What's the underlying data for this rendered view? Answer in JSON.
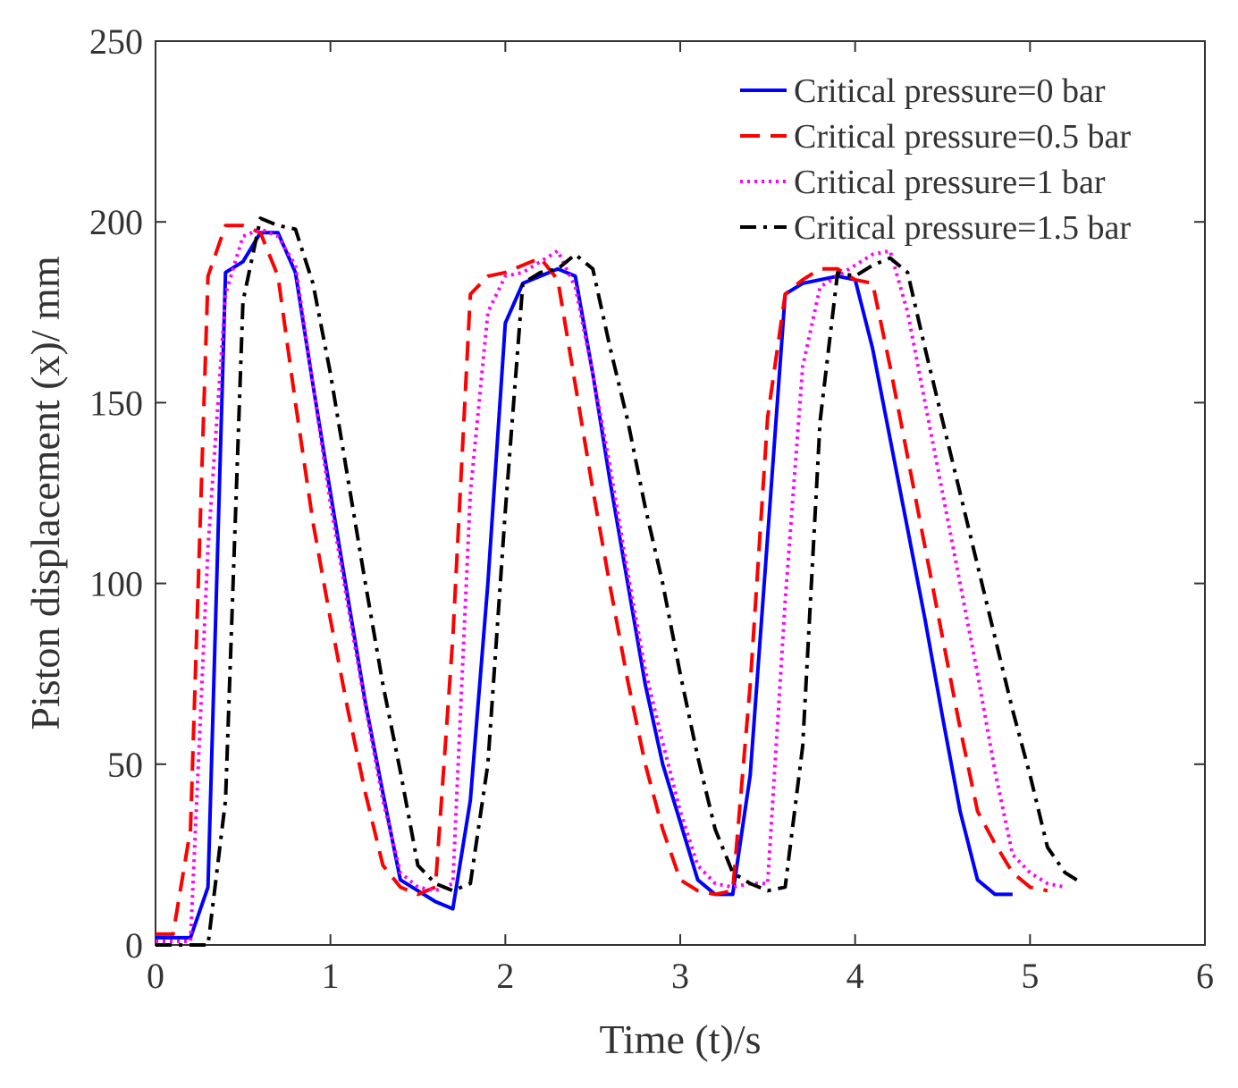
{
  "chart_data": {
    "type": "line",
    "title": "",
    "xlabel": "Time (t)/s",
    "ylabel": "Piston displacement (x)/ mm",
    "xlim": [
      0,
      6
    ],
    "ylim": [
      0,
      250
    ],
    "xticks": [
      0,
      1,
      2,
      3,
      4,
      5,
      6
    ],
    "yticks": [
      0,
      50,
      100,
      150,
      200,
      250
    ],
    "grid": false,
    "legend_position": "top-right",
    "series": [
      {
        "name": "Critical pressure=0 bar",
        "color": "#0000ff",
        "style": "solid",
        "x": [
          0,
          0.2,
          0.3,
          0.4,
          0.5,
          0.6,
          0.7,
          0.8,
          0.9,
          1.0,
          1.1,
          1.2,
          1.3,
          1.4,
          1.5,
          1.6,
          1.7,
          1.8,
          1.9,
          2.0,
          2.1,
          2.2,
          2.3,
          2.4,
          2.5,
          2.6,
          2.7,
          2.8,
          2.9,
          3.0,
          3.1,
          3.2,
          3.3,
          3.4,
          3.5,
          3.6,
          3.7,
          3.8,
          3.9,
          4.0,
          4.1,
          4.2,
          4.3,
          4.4,
          4.5,
          4.6,
          4.7,
          4.8,
          4.9
        ],
        "y": [
          2,
          2,
          16,
          186,
          189,
          197,
          197,
          186,
          155,
          125,
          96,
          67,
          42,
          18,
          15,
          12,
          10,
          40,
          100,
          172,
          183,
          185,
          187,
          185,
          158,
          128,
          100,
          72,
          50,
          34,
          18,
          14,
          14,
          47,
          113,
          180,
          183,
          184,
          185,
          184,
          165,
          140,
          115,
          90,
          63,
          37,
          18,
          14,
          14
        ]
      },
      {
        "name": "Critical pressure=0.5 bar",
        "color": "#ff0000",
        "style": "dashed",
        "x": [
          0,
          0.1,
          0.2,
          0.3,
          0.4,
          0.5,
          0.6,
          0.7,
          0.8,
          0.9,
          1.0,
          1.1,
          1.2,
          1.3,
          1.4,
          1.5,
          1.6,
          1.7,
          1.8,
          1.9,
          2.0,
          2.1,
          2.2,
          2.3,
          2.4,
          2.5,
          2.6,
          2.7,
          2.8,
          2.9,
          3.0,
          3.1,
          3.2,
          3.3,
          3.4,
          3.5,
          3.6,
          3.7,
          3.8,
          3.9,
          4.0,
          4.1,
          4.2,
          4.3,
          4.4,
          4.5,
          4.6,
          4.7,
          4.8,
          4.9,
          5.0,
          5.1
        ],
        "y": [
          3,
          3,
          32,
          185,
          199,
          199,
          197,
          185,
          150,
          117,
          90,
          65,
          42,
          22,
          16,
          14,
          16,
          85,
          180,
          185,
          186,
          188,
          190,
          184,
          155,
          126,
          99,
          73,
          50,
          32,
          18,
          15,
          14,
          15,
          72,
          146,
          180,
          184,
          187,
          187,
          184,
          183,
          160,
          135,
          110,
          85,
          60,
          37,
          28,
          20,
          16,
          15
        ]
      },
      {
        "name": "Critical pressure=1  bar",
        "color": "#ff00ff",
        "style": "dotted",
        "x": [
          0,
          0.1,
          0.2,
          0.3,
          0.4,
          0.5,
          0.6,
          0.7,
          0.8,
          0.9,
          1.0,
          1.1,
          1.2,
          1.3,
          1.4,
          1.5,
          1.6,
          1.7,
          1.8,
          1.9,
          2.0,
          2.1,
          2.2,
          2.3,
          2.4,
          2.5,
          2.6,
          2.7,
          2.8,
          2.9,
          3.0,
          3.1,
          3.2,
          3.3,
          3.4,
          3.5,
          3.6,
          3.7,
          3.8,
          3.9,
          4.0,
          4.1,
          4.2,
          4.3,
          4.4,
          4.5,
          4.6,
          4.7,
          4.8,
          4.9,
          5.0,
          5.1,
          5.2
        ],
        "y": [
          1,
          1,
          1,
          110,
          180,
          196,
          198,
          196,
          188,
          155,
          122,
          94,
          66,
          40,
          20,
          16,
          15,
          17,
          125,
          175,
          185,
          186,
          189,
          192,
          182,
          158,
          132,
          103,
          76,
          56,
          37,
          22,
          17,
          16,
          17,
          17,
          95,
          160,
          182,
          185,
          188,
          191,
          192,
          175,
          150,
          125,
          100,
          75,
          48,
          25,
          20,
          17,
          16
        ]
      },
      {
        "name": "Critical pressure=1.5 bar",
        "color": "#000000",
        "style": "dashdot",
        "x": [
          0,
          0.1,
          0.2,
          0.3,
          0.4,
          0.5,
          0.6,
          0.7,
          0.8,
          0.9,
          1.0,
          1.1,
          1.2,
          1.3,
          1.4,
          1.5,
          1.6,
          1.7,
          1.8,
          1.9,
          2.0,
          2.1,
          2.2,
          2.3,
          2.4,
          2.5,
          2.6,
          2.7,
          2.8,
          2.9,
          3.0,
          3.1,
          3.2,
          3.3,
          3.4,
          3.5,
          3.6,
          3.7,
          3.8,
          3.9,
          4.0,
          4.1,
          4.2,
          4.3,
          4.4,
          4.5,
          4.6,
          4.7,
          4.8,
          4.9,
          5.0,
          5.1,
          5.2,
          5.3
        ],
        "y": [
          0,
          0,
          0,
          0,
          40,
          178,
          201,
          199,
          198,
          183,
          158,
          129,
          100,
          72,
          48,
          22,
          17,
          15,
          17,
          50,
          120,
          183,
          186,
          187,
          191,
          187,
          165,
          145,
          121,
          100,
          75,
          52,
          32,
          20,
          17,
          15,
          16,
          55,
          145,
          186,
          185,
          188,
          190,
          186,
          165,
          145,
          125,
          105,
          85,
          65,
          47,
          27,
          20,
          17
        ]
      }
    ]
  }
}
